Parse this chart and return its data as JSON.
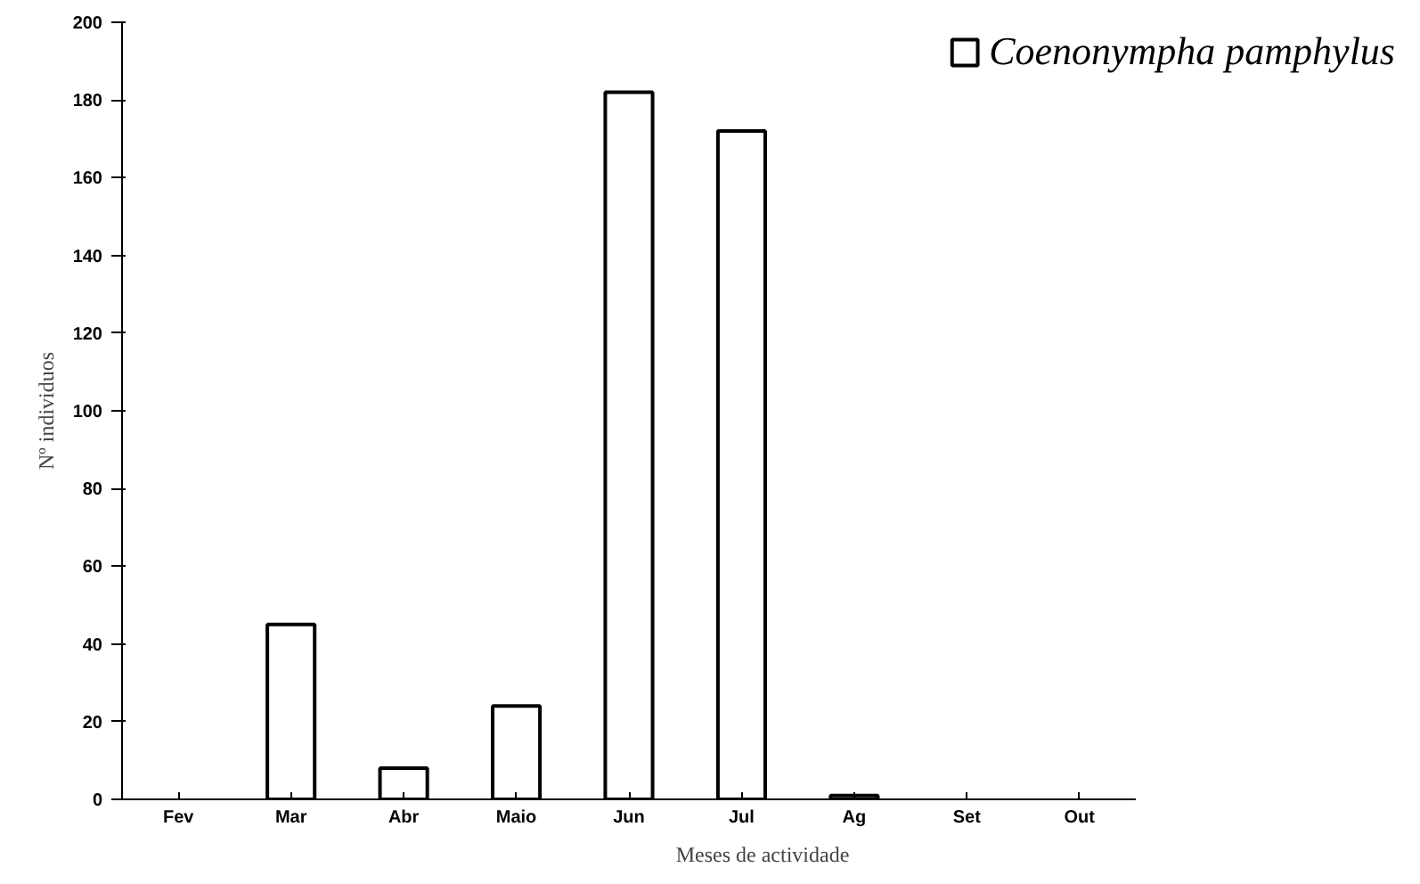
{
  "chart_data": {
    "type": "bar",
    "xlabel": "Meses de actividade",
    "ylabel": "Nº individuos",
    "categories": [
      "Fev",
      "Mar",
      "Abr",
      "Maio",
      "Jun",
      "Jul",
      "Ag",
      "Set",
      "Out"
    ],
    "series": [
      {
        "name": "Coenonympha pamphylus",
        "color": "#ffffff",
        "values": [
          0,
          45,
          8,
          24,
          182,
          172,
          1,
          0,
          0
        ]
      }
    ],
    "ylim": [
      0,
      200
    ],
    "yticks": [
      0,
      20,
      40,
      60,
      80,
      100,
      120,
      140,
      160,
      180,
      200
    ],
    "grid": false,
    "legend": "top right"
  }
}
